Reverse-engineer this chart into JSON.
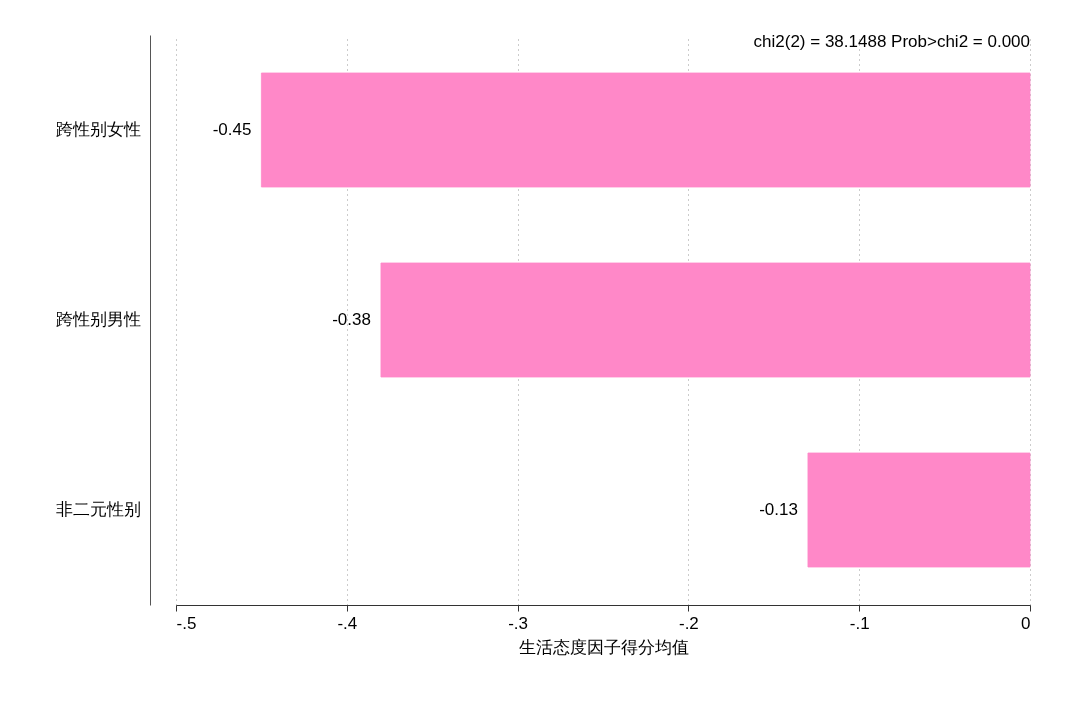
{
  "chart_data": {
    "type": "bar",
    "orientation": "horizontal",
    "xlabel": "生活态度因子得分均值",
    "categories": [
      "跨性别女性",
      "跨性别男性",
      "非二元性别"
    ],
    "values": [
      -0.45,
      -0.38,
      -0.13
    ],
    "color": "#ff88c8",
    "data_labels": true,
    "xlim": [
      -0.5,
      0
    ],
    "xticks": [
      {
        "value": -0.5,
        "label": "-.5"
      },
      {
        "value": -0.4,
        "label": "-.4"
      },
      {
        "value": -0.3,
        "label": "-.3"
      },
      {
        "value": -0.2,
        "label": "-.2"
      },
      {
        "value": -0.1,
        "label": "-.1"
      },
      0
    ],
    "grid": "x",
    "line_style": "dotted",
    "annotations": [
      "chi2(2) =  38.1488  Prob>chi2 = 0.000"
    ]
  }
}
